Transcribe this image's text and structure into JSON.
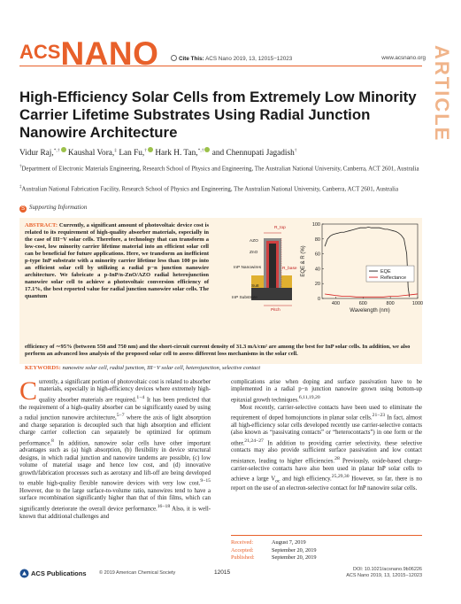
{
  "header": {
    "logo_acs": "ACS",
    "logo_nano": "NANO",
    "cite_label": "Cite This:",
    "cite_text": "ACS Nano 2019, 13, 12015−12023",
    "website": "www.acsnano.org",
    "side_tab": "ARTICLE"
  },
  "article": {
    "title": "High-Efficiency Solar Cells from Extremely Low Minority Carrier Lifetime Substrates Using Radial Junction Nanowire Architecture",
    "authors": [
      {
        "name": "Vidur Raj,",
        "marks": "*,†",
        "orcid": true
      },
      {
        "name": "Kaushal Vora,",
        "marks": "‡",
        "orcid": false
      },
      {
        "name": "Lan Fu,",
        "marks": "†",
        "orcid": true
      },
      {
        "name": "Hark H. Tan,",
        "marks": "*,†",
        "orcid": true
      },
      {
        "name": "and Chennupati Jagadish",
        "marks": "†",
        "orcid": false
      }
    ],
    "affiliations": [
      {
        "mark": "†",
        "text": "Department of Electronic Materials Engineering, Research School of Physics and Engineering, The Australian National University, Canberra, ACT 2601, Australia"
      },
      {
        "mark": "‡",
        "text": "Australian National Fabrication Facility, Research School of Physics and Engineering, The Australian National University, Canberra, ACT 2601, Australia"
      }
    ],
    "supporting": "Supporting Information",
    "abstract_label": "ABSTRACT:",
    "abstract_main": "Currently, a significant amount of photovoltaic device cost is related to its requirement of high-quality absorber materials, especially in the case of III−V solar cells. Therefore, a technology that can transform a low-cost, low minority carrier lifetime material into an efficient solar cell can be beneficial for future applications. Here, we transform an inefficient p-type InP substrate with a minority carrier lifetime less than 100 ps into an efficient solar cell by utilizing a radial p−n junction nanowire architecture. We fabricate a p-InP/n-ZnO/AZO radial heterojunction nanowire solar cell to achieve a photovoltaic conversion efficiency of 17.1%, the best reported value for radial junction nanowire solar cells. The quantum",
    "abstract_cont": "efficiency of ∼95% (between 550 and 750 nm) and the short-circuit current density of 31.3 mA/cm² are among the best for InP solar cells. In addition, we also perform an advanced loss analysis of the proposed solar cell to assess different loss mechanisms in the solar cell.",
    "keywords_label": "KEYWORDS:",
    "keywords": "nanowire solar cell, radial junction, III−V solar cell, heterojunction, selective contact"
  },
  "figure": {
    "labels": {
      "r_top": "R_top",
      "azo": "AZO",
      "zno": "ZnO",
      "inp_nanowires": "InP Nanowires",
      "r_base": "R_base",
      "su8": "Su8",
      "inp_substrate": "InP Substrate",
      "pitch": "Pitch",
      "d": "d"
    }
  },
  "chart_data": {
    "type": "line",
    "title": "",
    "xlabel": "Wavelength (nm)",
    "ylabel": "EQE & R (%)",
    "xlim": [
      300,
      1000
    ],
    "ylim": [
      0,
      100
    ],
    "xticks": [
      400,
      600,
      800,
      1000
    ],
    "yticks": [
      0,
      20,
      40,
      60,
      80,
      100
    ],
    "legend_position": "center-right",
    "series": [
      {
        "name": "EQE",
        "color": "#222222",
        "x": [
          320,
          340,
          360,
          380,
          400,
          420,
          440,
          460,
          480,
          500,
          520,
          540,
          560,
          580,
          600,
          620,
          640,
          660,
          680,
          700,
          720,
          740,
          760,
          780,
          800,
          820,
          840,
          860,
          880,
          900,
          920,
          925,
          930,
          940
        ],
        "y": [
          70,
          80,
          84,
          86,
          87,
          88,
          89,
          89,
          90,
          91,
          92,
          93,
          94,
          95,
          95,
          95,
          96,
          95,
          95,
          95,
          95,
          94,
          93,
          93,
          92,
          91,
          90,
          88,
          85,
          80,
          60,
          40,
          15,
          2
        ]
      },
      {
        "name": "Reflectance",
        "color": "#d42020",
        "x": [
          320,
          360,
          400,
          450,
          500,
          550,
          600,
          650,
          700,
          750,
          800,
          850,
          900,
          950,
          1000
        ],
        "y": [
          6,
          5,
          4,
          3,
          3,
          2,
          2,
          2,
          2,
          2,
          3,
          3,
          4,
          5,
          6
        ]
      }
    ]
  },
  "body": {
    "dropcap": "C",
    "left_p1_after_dropcap": "urrently, a significant portion of photovoltaic cost is related to absorber materials, especially in high-efficiency devices where extremely high-quality absorber materials are required.",
    "left_p1_ref1": "1−4",
    "left_p1_b": " It has been predicted that the requirement of a high-quality absorber can be significantly eased by using a radial junction nanowire architecture,",
    "left_p1_ref2": "5−7",
    "left_p1_c": " where the axis of light absorption and charge separation is decoupled such that high absorption and efficient charge carrier collection can separately be optimized for optimum performance.",
    "left_p1_ref3": "8",
    "left_p1_d": " In addition, nanowire solar cells have other important advantages such as (a) high absorption, (b) flexibility in device structural designs, in which radial junction and nanowire tandems are possible, (c) low volume of material usage and hence low cost, and (d) innovative growth/fabrication processes such as aerotaxy and lift-off are being developed to enable high-quality flexible nanowire devices with very low cost.",
    "left_p1_ref4": "9−15",
    "left_p1_e": " However, due to the large surface-to-volume ratio, nanowires tend to have a surface recombination significantly higher than that of thin films, which can significantly deteriorate the overall device performance.",
    "left_p1_ref5": "16−18",
    "left_p1_f": " Also, it is well-known that additional challenges and",
    "right_p1": "complications arise when doping and surface passivation have to be implemented in a radial p−n junction nanowire grown using bottom-up epitaxial growth techniques.",
    "right_p1_ref": "6,11,19,20",
    "right_p2_a": "Most recently, carrier-selective contacts have been used to eliminate the requirement of doped homojunctions in planar solar cells.",
    "right_p2_ref1": "21−23",
    "right_p2_b": " In fact, almost all high-efficiency solar cells developed recently use carrier-selective contacts (also known as “passivating contacts” or “heterocontacts”) in one form or the other.",
    "right_p2_ref2": "21,24−27",
    "right_p2_c": " In addition to providing carrier selectivity, these selective contacts may also provide sufficient surface passivation and low contact resistance, leading to higher efficiencies.",
    "right_p2_ref3": "28",
    "right_p2_d": " Previously, oxide-based charge-carrier-selective contacts have also been used in planar InP solar cells to achieve a large V",
    "right_p2_sub": "oc",
    "right_p2_e": " and high efficiency.",
    "right_p2_ref4": "25,29,30",
    "right_p2_f": " However, so far, there is no report on the use of an electron-selective contact for InP nanowire solar cells."
  },
  "dates": [
    {
      "label": "Received:",
      "value": "August 7, 2019"
    },
    {
      "label": "Accepted:",
      "value": "September 20, 2019"
    },
    {
      "label": "Published:",
      "value": "September 20, 2019"
    }
  ],
  "footer": {
    "publisher": "ACS Publications",
    "copyright": "© 2019 American Chemical Society",
    "page": "12015",
    "doi": "DOI: 10.1021/acsnano.9b06226",
    "journal": "ACS Nano 2019, 13, 12015−12023"
  }
}
